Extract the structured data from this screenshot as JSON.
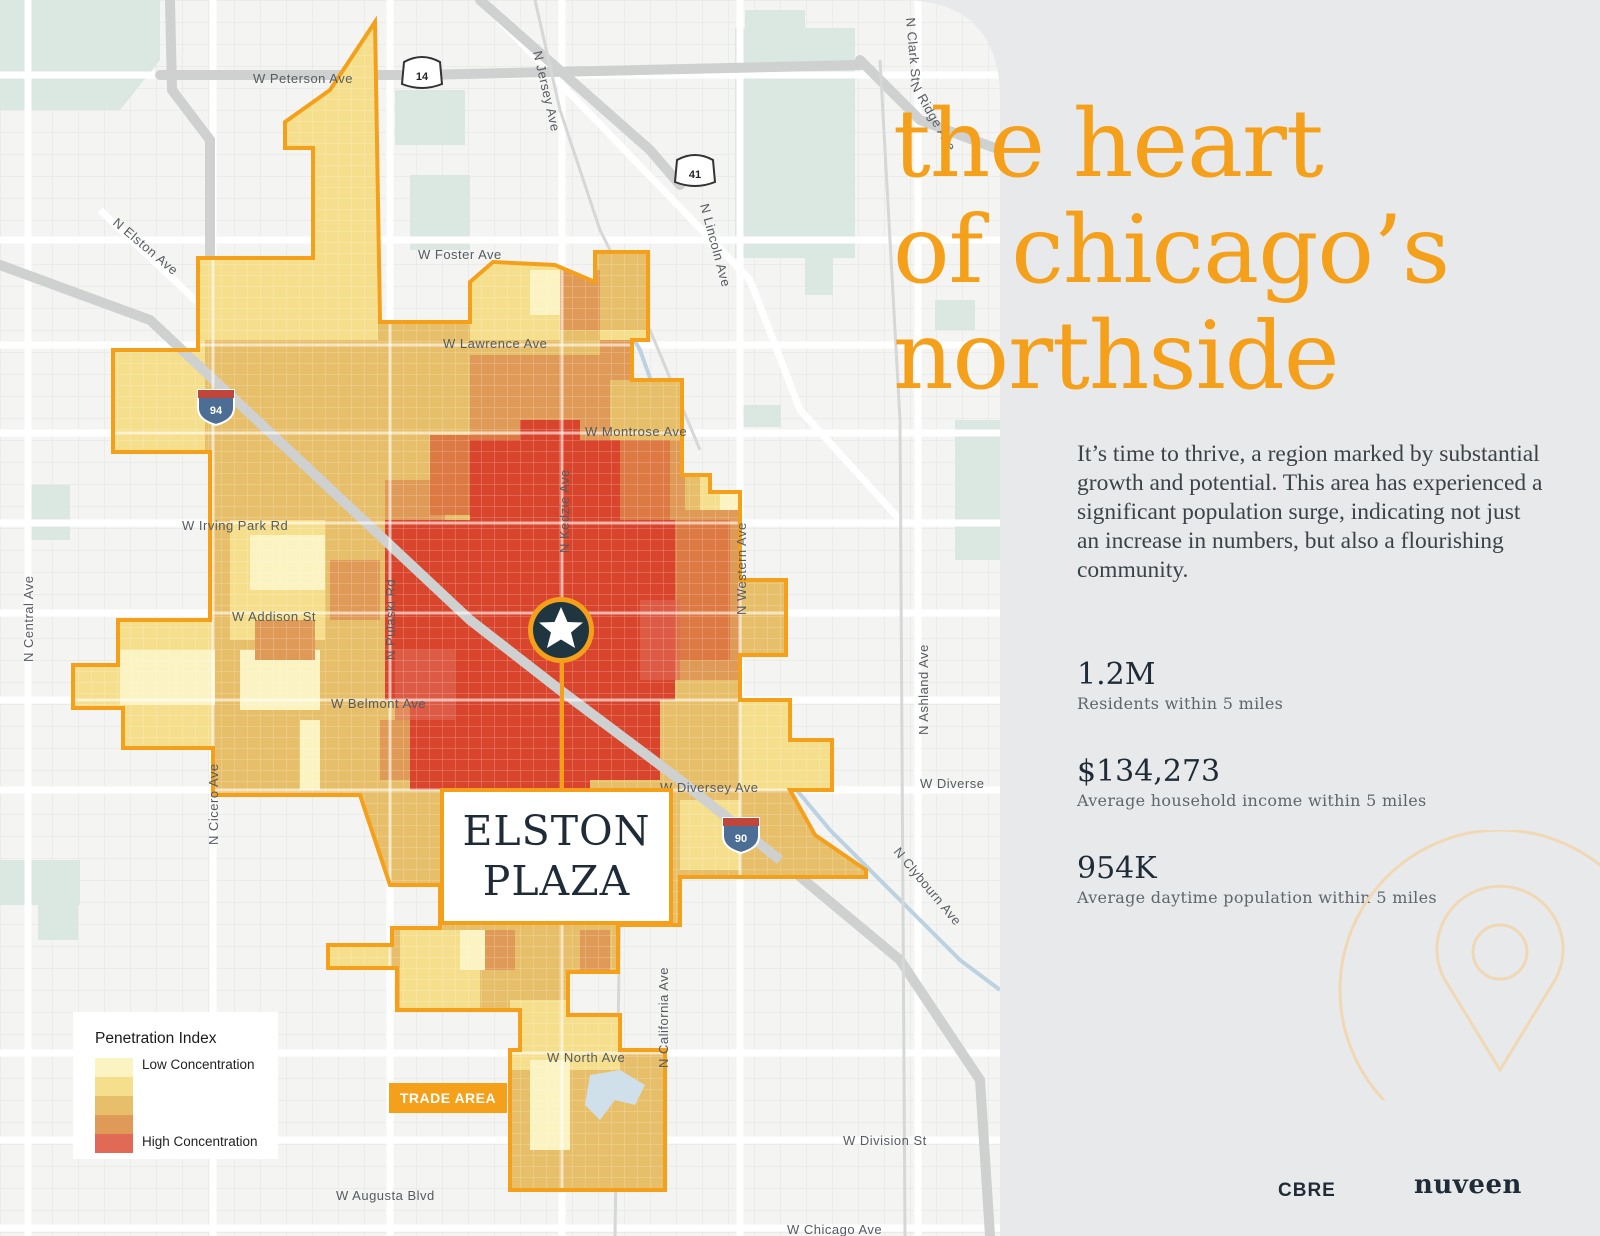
{
  "title_lines": [
    "the heart",
    "of chicago’s",
    "northside"
  ],
  "intro": "It’s time to thrive, a region marked by substantial growth and potential. This area has experienced a significant population surge, indicating not just an increase in numbers, but also a flourishing community.",
  "stats": [
    {
      "value": "1.2M",
      "label": "Residents within 5 miles"
    },
    {
      "value": "$134,273",
      "label": "Average household income within 5 miles"
    },
    {
      "value": "954K",
      "label": "Average daytime population within 5 miles"
    }
  ],
  "property": {
    "line1": "ELSTON",
    "line2": "PLAZA"
  },
  "trade_area_label": "TRADE AREA",
  "legend": {
    "title": "Penetration Index",
    "low_label": "Low Concentration",
    "high_label": "High Concentration",
    "colors": [
      "#fbf3c2",
      "#f5df8c",
      "#e7be6a",
      "#e09a58",
      "#e06a55"
    ]
  },
  "streets": {
    "peterson": "W Peterson Ave",
    "foster": "W Foster Ave",
    "lawrence": "W Lawrence Ave",
    "montrose": "W Montrose Ave",
    "irving": "W Irving Park Rd",
    "addison": "W Addison St",
    "belmont": "W Belmont Ave",
    "diversey_west": "W Diversey Ave",
    "diversey_east": "W Diverse",
    "north": "W North Ave",
    "division": "W Division St",
    "augusta": "W Augusta Blvd",
    "chicago": "W Chicago Ave",
    "elston": "N Elston Ave",
    "jersey": "N Jersey Ave",
    "lincoln": "N Lincoln Ave",
    "kedzie": "N Kedzie Ave",
    "pulaski": "N Pulaski Rd",
    "cicero": "N Cicero Ave",
    "central": "N Central Ave",
    "western": "N Western Ave",
    "ashland": "N Ashland Ave",
    "california": "N California Ave",
    "clybourn": "N Clybourn Ave",
    "ridge": "N Ridge Ave",
    "clark": "N Clark St"
  },
  "shields": {
    "us14": "14",
    "us41": "41",
    "i94": "94",
    "i90": "90"
  },
  "colors": {
    "accent": "#f5a01a",
    "navy": "#1f2c37",
    "panel": "#e8e9eb",
    "map_bg": "#f4f4f3"
  },
  "logos": {
    "cbre": "CBRE",
    "nuveen": "nuveen"
  }
}
